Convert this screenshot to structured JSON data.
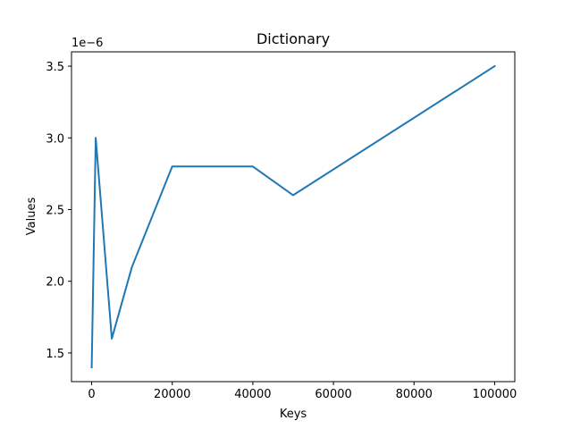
{
  "chart_data": {
    "type": "line",
    "title": "Dictionary",
    "xlabel": "Keys",
    "ylabel": "Values",
    "y_offset_label": "1e−6",
    "x": [
      10,
      1000,
      5000,
      10000,
      20000,
      40000,
      50000,
      100000
    ],
    "series": [
      {
        "values": [
          1.4e-06,
          3e-06,
          1.6e-06,
          2.1e-06,
          2.8e-06,
          2.8e-06,
          2.6e-06,
          3.5e-06
        ],
        "color": "#1f77b4"
      }
    ],
    "xlim": [
      -5000,
      105000
    ],
    "ylim": [
      1.3e-06,
      3.6e-06
    ],
    "x_ticks": [
      0,
      20000,
      40000,
      60000,
      80000,
      100000
    ],
    "x_tick_labels": [
      "0",
      "20000",
      "40000",
      "60000",
      "80000",
      "100000"
    ],
    "y_ticks": [
      1.5e-06,
      2e-06,
      2.5e-06,
      3e-06,
      3.5e-06
    ],
    "y_tick_labels": [
      "1.5",
      "2.0",
      "2.5",
      "3.0",
      "3.5"
    ],
    "grid": false,
    "legend": false
  }
}
